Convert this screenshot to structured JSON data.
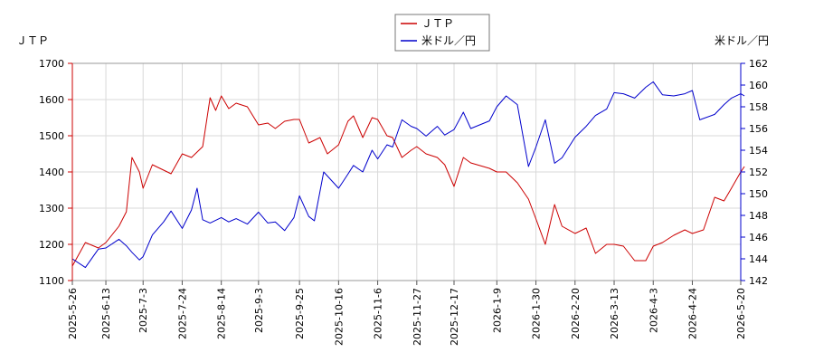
{
  "chart_data": {
    "type": "line",
    "left_axis_title": "ＪＴＰ",
    "right_axis_title": "米ドル／円",
    "legend_placement": "top-center",
    "grid": true,
    "y_left": {
      "min": 1100,
      "max": 1700,
      "ticks": [
        1100,
        1200,
        1300,
        1400,
        1500,
        1600,
        1700
      ]
    },
    "y_right": {
      "min": 142,
      "max": 162,
      "ticks": [
        142,
        144,
        146,
        148,
        150,
        152,
        154,
        156,
        158,
        160,
        162
      ]
    },
    "x_ticks": [
      "2025-5-26",
      "2025-6-13",
      "2025-7-3",
      "2025-7-24",
      "2025-8-14",
      "2025-9-3",
      "2025-9-25",
      "2025-10-16",
      "2025-11-6",
      "2025-11-27",
      "2025-12-17",
      "2026-1-9",
      "2026-1-30",
      "2026-2-20",
      "2026-3-13",
      "2026-4-3",
      "2026-4-24",
      "2026-5-20"
    ],
    "series": [
      {
        "name": "ＪＴＰ",
        "axis": "left",
        "color": "#cc0000",
        "points": [
          [
            "2025-5-26",
            1140
          ],
          [
            "2025-6-2",
            1205
          ],
          [
            "2025-6-9",
            1190
          ],
          [
            "2025-6-13",
            1205
          ],
          [
            "2025-6-20",
            1250
          ],
          [
            "2025-6-24",
            1290
          ],
          [
            "2025-6-27",
            1440
          ],
          [
            "2025-7-1",
            1400
          ],
          [
            "2025-7-3",
            1355
          ],
          [
            "2025-7-8",
            1420
          ],
          [
            "2025-7-14",
            1405
          ],
          [
            "2025-7-18",
            1395
          ],
          [
            "2025-7-24",
            1450
          ],
          [
            "2025-7-29",
            1440
          ],
          [
            "2025-8-4",
            1470
          ],
          [
            "2025-8-8",
            1605
          ],
          [
            "2025-8-11",
            1570
          ],
          [
            "2025-8-14",
            1610
          ],
          [
            "2025-8-18",
            1575
          ],
          [
            "2025-8-22",
            1590
          ],
          [
            "2025-8-28",
            1580
          ],
          [
            "2025-9-3",
            1530
          ],
          [
            "2025-9-8",
            1535
          ],
          [
            "2025-9-12",
            1520
          ],
          [
            "2025-9-17",
            1540
          ],
          [
            "2025-9-22",
            1545
          ],
          [
            "2025-9-25",
            1545
          ],
          [
            "2025-9-30",
            1480
          ],
          [
            "2025-10-6",
            1495
          ],
          [
            "2025-10-10",
            1450
          ],
          [
            "2025-10-16",
            1475
          ],
          [
            "2025-10-21",
            1540
          ],
          [
            "2025-10-24",
            1555
          ],
          [
            "2025-10-29",
            1495
          ],
          [
            "2025-11-3",
            1550
          ],
          [
            "2025-11-6",
            1545
          ],
          [
            "2025-11-11",
            1500
          ],
          [
            "2025-11-14",
            1495
          ],
          [
            "2025-11-19",
            1440
          ],
          [
            "2025-11-24",
            1460
          ],
          [
            "2025-11-27",
            1470
          ],
          [
            "2025-12-2",
            1450
          ],
          [
            "2025-12-8",
            1440
          ],
          [
            "2025-12-12",
            1420
          ],
          [
            "2025-12-17",
            1360
          ],
          [
            "2025-12-22",
            1440
          ],
          [
            "2025-12-26",
            1425
          ],
          [
            "2026-1-5",
            1410
          ],
          [
            "2026-1-9",
            1400
          ],
          [
            "2026-1-14",
            1400
          ],
          [
            "2026-1-20",
            1370
          ],
          [
            "2026-1-26",
            1325
          ],
          [
            "2026-1-30",
            1270
          ],
          [
            "2026-2-4",
            1200
          ],
          [
            "2026-2-9",
            1310
          ],
          [
            "2026-2-13",
            1250
          ],
          [
            "2026-2-20",
            1230
          ],
          [
            "2026-2-26",
            1245
          ],
          [
            "2026-3-3",
            1175
          ],
          [
            "2026-3-9",
            1200
          ],
          [
            "2026-3-13",
            1200
          ],
          [
            "2026-3-18",
            1195
          ],
          [
            "2026-3-24",
            1155
          ],
          [
            "2026-3-30",
            1155
          ],
          [
            "2026-4-3",
            1195
          ],
          [
            "2026-4-8",
            1205
          ],
          [
            "2026-4-14",
            1225
          ],
          [
            "2026-4-20",
            1240
          ],
          [
            "2026-4-24",
            1230
          ],
          [
            "2026-4-30",
            1240
          ],
          [
            "2026-5-6",
            1330
          ],
          [
            "2026-5-11",
            1320
          ],
          [
            "2026-5-15",
            1355
          ],
          [
            "2026-5-20",
            1400
          ],
          [
            "2026-5-22",
            1415
          ]
        ]
      },
      {
        "name": "米ドル／円",
        "axis": "right",
        "color": "#0000cc",
        "points": [
          [
            "2025-5-26",
            144.0
          ],
          [
            "2025-6-2",
            143.2
          ],
          [
            "2025-6-9",
            144.9
          ],
          [
            "2025-6-13",
            145.0
          ],
          [
            "2025-6-20",
            145.8
          ],
          [
            "2025-6-24",
            145.2
          ],
          [
            "2025-6-27",
            144.6
          ],
          [
            "2025-7-1",
            143.9
          ],
          [
            "2025-7-3",
            144.2
          ],
          [
            "2025-7-8",
            146.2
          ],
          [
            "2025-7-14",
            147.4
          ],
          [
            "2025-7-18",
            148.4
          ],
          [
            "2025-7-24",
            146.8
          ],
          [
            "2025-7-29",
            148.5
          ],
          [
            "2025-8-1",
            150.5
          ],
          [
            "2025-8-4",
            147.6
          ],
          [
            "2025-8-8",
            147.3
          ],
          [
            "2025-8-14",
            147.8
          ],
          [
            "2025-8-18",
            147.4
          ],
          [
            "2025-8-22",
            147.7
          ],
          [
            "2025-8-28",
            147.2
          ],
          [
            "2025-9-3",
            148.3
          ],
          [
            "2025-9-8",
            147.3
          ],
          [
            "2025-9-12",
            147.4
          ],
          [
            "2025-9-17",
            146.6
          ],
          [
            "2025-9-22",
            147.8
          ],
          [
            "2025-9-25",
            149.8
          ],
          [
            "2025-9-30",
            147.9
          ],
          [
            "2025-10-3",
            147.5
          ],
          [
            "2025-10-8",
            152.0
          ],
          [
            "2025-10-16",
            150.5
          ],
          [
            "2025-10-21",
            151.8
          ],
          [
            "2025-10-24",
            152.6
          ],
          [
            "2025-10-29",
            152.0
          ],
          [
            "2025-11-3",
            154.0
          ],
          [
            "2025-11-6",
            153.2
          ],
          [
            "2025-11-11",
            154.5
          ],
          [
            "2025-11-14",
            154.3
          ],
          [
            "2025-11-19",
            156.8
          ],
          [
            "2025-11-24",
            156.2
          ],
          [
            "2025-11-27",
            156.0
          ],
          [
            "2025-12-2",
            155.3
          ],
          [
            "2025-12-8",
            156.2
          ],
          [
            "2025-12-12",
            155.4
          ],
          [
            "2025-12-17",
            155.9
          ],
          [
            "2025-12-22",
            157.5
          ],
          [
            "2025-12-26",
            156.0
          ],
          [
            "2026-1-5",
            156.7
          ],
          [
            "2026-1-9",
            158.0
          ],
          [
            "2026-1-14",
            159.0
          ],
          [
            "2026-1-20",
            158.2
          ],
          [
            "2026-1-26",
            152.5
          ],
          [
            "2026-1-30",
            154.3
          ],
          [
            "2026-2-4",
            156.8
          ],
          [
            "2026-2-9",
            152.8
          ],
          [
            "2026-2-13",
            153.3
          ],
          [
            "2026-2-20",
            155.2
          ],
          [
            "2026-2-26",
            156.2
          ],
          [
            "2026-3-3",
            157.2
          ],
          [
            "2026-3-9",
            157.8
          ],
          [
            "2026-3-13",
            159.3
          ],
          [
            "2026-3-18",
            159.2
          ],
          [
            "2026-3-24",
            158.8
          ],
          [
            "2026-3-30",
            159.8
          ],
          [
            "2026-4-3",
            160.3
          ],
          [
            "2026-4-8",
            159.1
          ],
          [
            "2026-4-14",
            159.0
          ],
          [
            "2026-4-20",
            159.2
          ],
          [
            "2026-4-24",
            159.5
          ],
          [
            "2026-4-28",
            156.8
          ],
          [
            "2026-5-6",
            157.3
          ],
          [
            "2026-5-11",
            158.2
          ],
          [
            "2026-5-15",
            158.8
          ],
          [
            "2026-5-20",
            159.2
          ],
          [
            "2026-5-22",
            159.0
          ]
        ]
      }
    ]
  }
}
